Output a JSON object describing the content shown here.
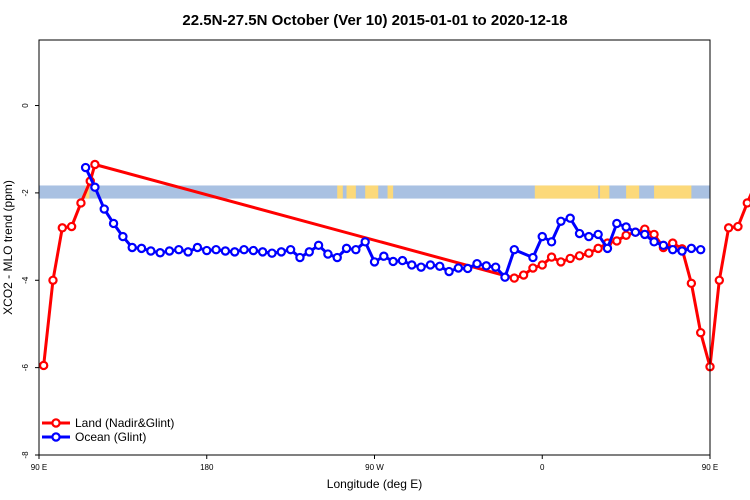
{
  "chart_data": {
    "type": "line",
    "title": "22.5N-27.5N October (Ver 10)   2015-01-01 to 2020-12-18",
    "xlabel": "Longitude (deg E)",
    "ylabel": "XCO2 - MLO trend (ppm)",
    "xlim": [
      90,
      450
    ],
    "ylim": [
      -8,
      1.5
    ],
    "x_ticks": [
      {
        "value": 90,
        "label": "90 E"
      },
      {
        "value": 180,
        "label": "180"
      },
      {
        "value": 270,
        "label": "90 W"
      },
      {
        "value": 360,
        "label": "0"
      },
      {
        "value": 450,
        "label": "90 E"
      },
      {
        "value": 540,
        "label": "180"
      }
    ],
    "y_ticks": [
      {
        "value": 0,
        "label": "0"
      },
      {
        "value": -2,
        "label": "-2"
      },
      {
        "value": -4,
        "label": "-4"
      },
      {
        "value": -6,
        "label": "-6"
      },
      {
        "value": -8,
        "label": "-8"
      }
    ],
    "land_ocean_band": {
      "y_top": -1.83,
      "y_bottom": -2.13,
      "ocean_color": "#a9c1e2",
      "land_color": "#fcd97a",
      "land_ranges": [
        [
          115,
          117
        ],
        [
          250,
          253
        ],
        [
          255,
          260
        ],
        [
          265,
          272
        ],
        [
          277,
          280
        ],
        [
          356,
          390
        ],
        [
          391,
          396
        ],
        [
          405,
          412
        ],
        [
          420,
          440
        ],
        [
          474,
          476
        ]
      ]
    },
    "series": [
      {
        "name": "Land (Nadir&Glint)",
        "color": "#ff0000",
        "x": [
          92.5,
          97.5,
          102.5,
          107.5,
          112.5,
          117.5,
          120,
          345,
          350,
          355,
          360,
          365,
          370,
          375,
          380,
          385,
          390,
          395,
          400,
          405,
          410,
          415,
          420,
          425,
          430,
          435,
          440,
          445,
          450,
          455,
          460,
          465,
          470,
          475,
          480
        ],
        "y": [
          -5.95,
          -4.0,
          -2.8,
          -2.77,
          -2.23,
          -1.73,
          -1.35,
          -3.95,
          -3.88,
          -3.72,
          -3.65,
          -3.47,
          -3.58,
          -3.5,
          -3.44,
          -3.38,
          -3.27,
          -3.15,
          -3.1,
          -2.97,
          -2.9,
          -2.83,
          -2.95,
          -3.25,
          -3.15,
          -3.28,
          -4.07,
          -5.2,
          -5.98,
          -4.0,
          -2.8,
          -2.77,
          -2.23,
          -1.73,
          -1.35
        ]
      },
      {
        "name": "Ocean (Glint)",
        "color": "#0000ff",
        "x": [
          115,
          120,
          125,
          130,
          135,
          140,
          145,
          150,
          155,
          160,
          165,
          170,
          175,
          180,
          185,
          190,
          195,
          200,
          205,
          210,
          215,
          220,
          225,
          230,
          235,
          240,
          245,
          250,
          255,
          260,
          265,
          270,
          275,
          280,
          285,
          290,
          295,
          300,
          305,
          310,
          315,
          320,
          325,
          330,
          335,
          340,
          345,
          355,
          360,
          365,
          370,
          375,
          380,
          385,
          390,
          395,
          400,
          405,
          410,
          415,
          420,
          425,
          430,
          435,
          440,
          445
        ],
        "y": [
          -1.42,
          -1.87,
          -2.37,
          -2.7,
          -3.0,
          -3.25,
          -3.27,
          -3.33,
          -3.37,
          -3.33,
          -3.3,
          -3.35,
          -3.25,
          -3.32,
          -3.3,
          -3.33,
          -3.35,
          -3.3,
          -3.32,
          -3.35,
          -3.38,
          -3.35,
          -3.3,
          -3.48,
          -3.35,
          -3.2,
          -3.4,
          -3.48,
          -3.27,
          -3.3,
          -3.12,
          -3.58,
          -3.45,
          -3.57,
          -3.55,
          -3.65,
          -3.7,
          -3.65,
          -3.68,
          -3.8,
          -3.72,
          -3.73,
          -3.62,
          -3.67,
          -3.7,
          -3.93,
          -3.3,
          -3.48,
          -3.0,
          -3.12,
          -2.65,
          -2.58,
          -2.93,
          -3.0,
          -2.95,
          -3.27,
          -2.7,
          -2.78,
          -2.9,
          -2.95,
          -3.12,
          -3.2,
          -3.3,
          -3.33,
          -3.27,
          -3.3
        ]
      }
    ],
    "legend": {
      "position": "bottom-left"
    }
  }
}
